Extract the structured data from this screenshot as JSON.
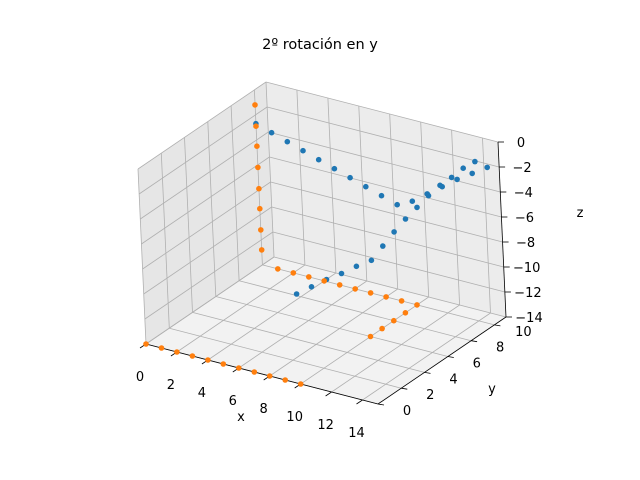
{
  "chart_data": {
    "type": "scatter",
    "title": "2º rotación en y",
    "xlabel": "x",
    "ylabel": "y",
    "zlabel": "z",
    "xlim": [
      0,
      15
    ],
    "ylim": [
      0,
      11
    ],
    "zlim": [
      -14,
      0
    ],
    "xticks": [
      "0",
      "2",
      "4",
      "6",
      "8",
      "10",
      "12",
      "14"
    ],
    "yticks": [
      "0",
      "2",
      "4",
      "6",
      "8",
      "10"
    ],
    "zticks": [
      "0",
      "−2",
      "−4",
      "−6",
      "−8",
      "−10",
      "−12",
      "−14"
    ],
    "grid": true,
    "series": [
      {
        "color": "#1f77b4",
        "points": [
          [
            0,
            10,
            -2.7
          ],
          [
            1,
            10,
            -3.1
          ],
          [
            2,
            10,
            -3.5
          ],
          [
            3,
            10,
            -3.9
          ],
          [
            4,
            10,
            -4.3
          ],
          [
            5,
            10,
            -4.7
          ],
          [
            6,
            10,
            -5.1
          ],
          [
            7,
            10,
            -5.5
          ],
          [
            8,
            10,
            -5.9
          ],
          [
            9,
            10,
            -6.3
          ],
          [
            10,
            10,
            -5.7
          ],
          [
            11,
            10,
            -4.8
          ],
          [
            12,
            10,
            -3.9
          ],
          [
            13,
            10,
            -3.0
          ],
          [
            14,
            10,
            -2.2
          ],
          [
            15,
            10,
            -1.4
          ],
          [
            15,
            9,
            -0.3
          ],
          [
            15,
            8,
            -0.2
          ],
          [
            15,
            7,
            -0.3
          ],
          [
            15,
            6,
            -0.3
          ],
          [
            15,
            5,
            -0.5
          ],
          [
            15,
            4,
            -0.8
          ],
          [
            15,
            3,
            -1.1
          ],
          [
            15,
            2,
            -1.5
          ],
          [
            15,
            1,
            -2.0
          ],
          [
            15,
            0,
            -2.5
          ],
          [
            14,
            0,
            -3.3
          ],
          [
            13,
            0,
            -4.2
          ],
          [
            12,
            0,
            -5.0
          ],
          [
            11,
            0,
            -5.9
          ],
          [
            10,
            0,
            -6.8
          ]
        ]
      },
      {
        "color": "#ff7f0e",
        "points": [
          [
            0,
            10,
            -1.2
          ],
          [
            0,
            10,
            -2.9
          ],
          [
            0,
            10,
            -4.5
          ],
          [
            0,
            10,
            -6.2
          ],
          [
            0,
            10,
            -7.9
          ],
          [
            0,
            10,
            -9.5
          ],
          [
            0,
            10,
            -11.2
          ],
          [
            0,
            10,
            -12.8
          ],
          [
            1,
            10,
            -14
          ],
          [
            2,
            10,
            -14
          ],
          [
            3,
            10,
            -14
          ],
          [
            4,
            10,
            -14
          ],
          [
            5,
            10,
            -14
          ],
          [
            6,
            10,
            -14
          ],
          [
            7,
            10,
            -14
          ],
          [
            8,
            10,
            -14
          ],
          [
            9,
            10,
            -14
          ],
          [
            10,
            10,
            -14
          ],
          [
            10,
            9,
            -14
          ],
          [
            10,
            8,
            -14
          ],
          [
            10,
            7,
            -14
          ],
          [
            10,
            6,
            -14
          ],
          [
            0,
            0,
            -14
          ],
          [
            1,
            0,
            -14
          ],
          [
            2,
            0,
            -14
          ],
          [
            3,
            0,
            -14
          ],
          [
            4,
            0,
            -14
          ],
          [
            5,
            0,
            -14
          ],
          [
            6,
            0,
            -14
          ],
          [
            7,
            0,
            -14
          ],
          [
            8,
            0,
            -14
          ],
          [
            9,
            0,
            -14
          ],
          [
            10,
            0,
            -14
          ]
        ]
      }
    ]
  }
}
